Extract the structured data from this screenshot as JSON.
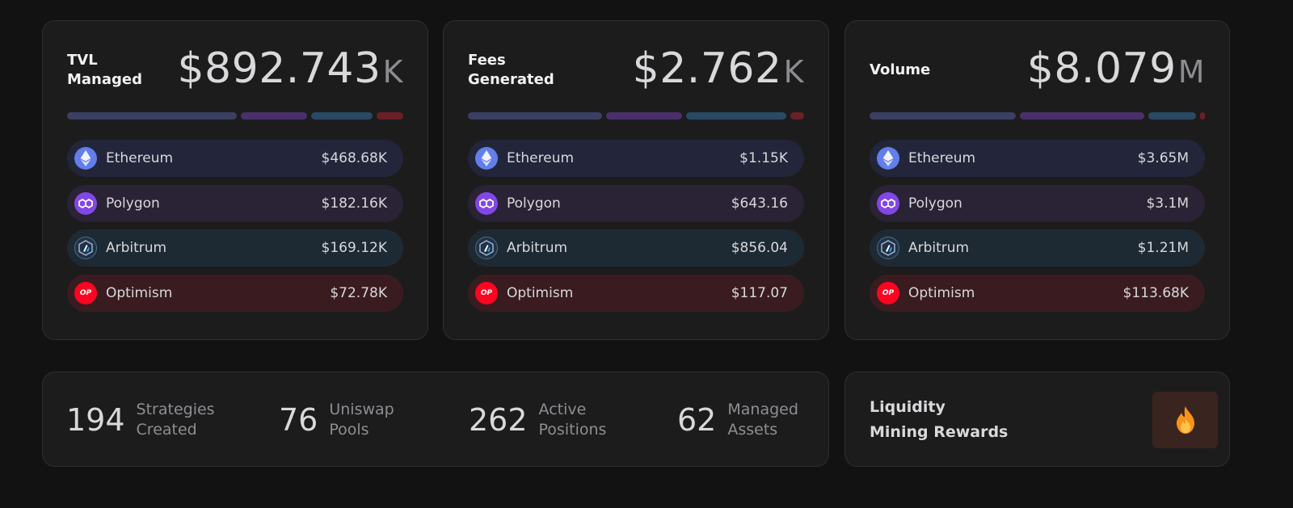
{
  "cards": [
    {
      "title": "TVL\nManaged",
      "value": "$892.743",
      "suffix": "K",
      "rows": [
        {
          "chain": "Ethereum",
          "value": "$468.68K"
        },
        {
          "chain": "Polygon",
          "value": "$182.16K"
        },
        {
          "chain": "Arbitrum",
          "value": "$169.12K"
        },
        {
          "chain": "Optimism",
          "value": "$72.78K"
        }
      ]
    },
    {
      "title": "Fees\nGenerated",
      "value": "$2.762",
      "suffix": "K",
      "rows": [
        {
          "chain": "Ethereum",
          "value": "$1.15K"
        },
        {
          "chain": "Polygon",
          "value": "$643.16"
        },
        {
          "chain": "Arbitrum",
          "value": "$856.04"
        },
        {
          "chain": "Optimism",
          "value": "$117.07"
        }
      ]
    },
    {
      "title": "Volume",
      "value": "$8.079",
      "suffix": "M",
      "rows": [
        {
          "chain": "Ethereum",
          "value": "$3.65M"
        },
        {
          "chain": "Polygon",
          "value": "$3.1M"
        },
        {
          "chain": "Arbitrum",
          "value": "$1.21M"
        },
        {
          "chain": "Optimism",
          "value": "$113.68K"
        }
      ]
    }
  ],
  "icons": {
    "ethereum": "ethereum-icon",
    "polygon": "polygon-icon",
    "arbitrum": "arbitrum-icon",
    "optimism": "optimism-icon",
    "optimism_text": "OP"
  },
  "stats": [
    {
      "number": "194",
      "label": "Strategies\nCreated"
    },
    {
      "number": "76",
      "label": "Uniswap\nPools"
    },
    {
      "number": "262",
      "label": "Active\nPositions"
    },
    {
      "number": "62",
      "label": "Managed\nAssets"
    }
  ],
  "rewards": {
    "title": "Liquidity\nMining Rewards",
    "icon": "flame-icon"
  },
  "colors": {
    "background": "#121212",
    "ethereum": "#627eea",
    "polygon": "#8247e5",
    "arbitrum": "#28a0f0",
    "optimism": "#ff0420",
    "flame": "#f7931a"
  }
}
